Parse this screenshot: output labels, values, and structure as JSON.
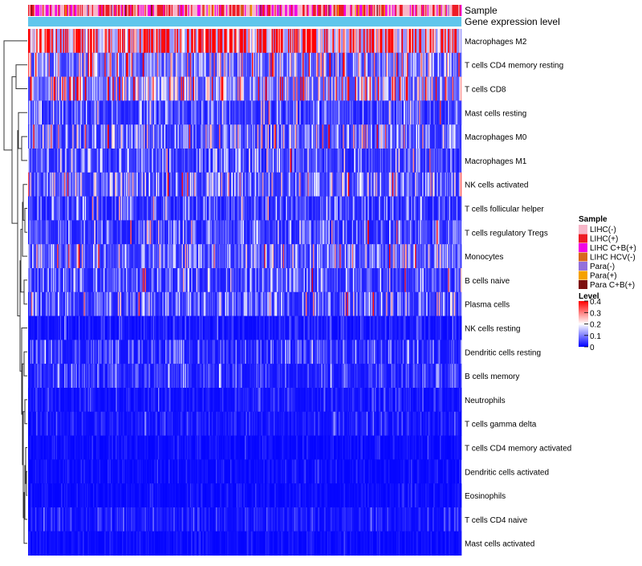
{
  "chart_data": {
    "type": "heatmap",
    "annotation_rows": [
      "Sample",
      "Gene expression level"
    ],
    "rows": [
      "Macrophages M2",
      "T cells CD4 memory resting",
      "T cells CD8",
      "Mast cells resting",
      "Macrophages M0",
      "Macrophages M1",
      "NK cells activated",
      "T cells follicular helper",
      "T cells regulatory  Tregs",
      "Monocytes",
      "B cells naive",
      "Plasma cells",
      "NK cells resting",
      "Dendritic cells resting",
      "B cells memory",
      "Neutrophils",
      "T cells gamma delta",
      "T cells CD4 memory activated",
      "Dendritic cells activated",
      "Eosinophils",
      "T cells CD4 naive",
      "Mast cells activated"
    ],
    "row_mean_level": [
      0.33,
      0.12,
      0.15,
      0.06,
      0.08,
      0.06,
      0.09,
      0.05,
      0.06,
      0.09,
      0.06,
      0.07,
      0.02,
      0.04,
      0.04,
      0.02,
      0.02,
      0.01,
      0.01,
      0.01,
      0.02,
      0.01
    ],
    "n_samples": 420,
    "gene_expression_color": "#60c6ec",
    "legend_sample": {
      "title": "Sample",
      "items": [
        {
          "label": "LIHC(-)",
          "color": "#f7b6c8"
        },
        {
          "label": "LIHC(+)",
          "color": "#ee1c25"
        },
        {
          "label": "LIHC C+B(+)",
          "color": "#f007e6"
        },
        {
          "label": "LIHC HCV(-)",
          "color": "#d8691c"
        },
        {
          "label": "Para(-)",
          "color": "#9370db"
        },
        {
          "label": "Para(+)",
          "color": "#f5a100"
        },
        {
          "label": "Para C+B(+)",
          "color": "#7d0f0f"
        }
      ]
    },
    "legend_level": {
      "title": "Level",
      "ticks": [
        "0.4",
        "0.3",
        "0.2",
        "0.1",
        "0"
      ],
      "tick_values": [
        0.4,
        0.3,
        0.2,
        0.1,
        0
      ],
      "range": [
        0,
        0.4
      ],
      "colors": {
        "low": "#0000ff",
        "mid": "#ffffff",
        "high": "#ff0000"
      }
    }
  }
}
